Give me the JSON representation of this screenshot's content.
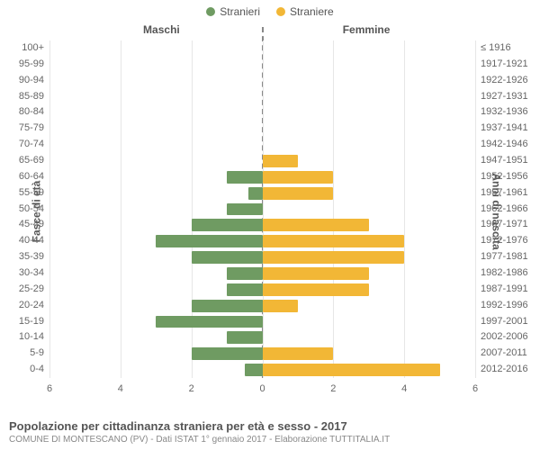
{
  "legend": {
    "male": {
      "label": "Stranieri",
      "color": "#6f9b62"
    },
    "female": {
      "label": "Straniere",
      "color": "#f2b736"
    }
  },
  "chart": {
    "type": "bar",
    "left_title": "Maschi",
    "right_title": "Femmine",
    "yaxis_left_label": "Fasce di età",
    "yaxis_right_label": "Anni di nascita",
    "xmax": 6,
    "xticks": [
      0,
      2,
      4,
      6
    ],
    "grid_color": "#e6e6e6",
    "background_color": "#ffffff",
    "center_line_color": "#888888",
    "male_color": "#6f9b62",
    "female_color": "#f2b736",
    "label_fontsize": 11,
    "title_fontsize": 12,
    "rows": [
      {
        "age": "100+",
        "year": "≤ 1916",
        "m": 0,
        "f": 0
      },
      {
        "age": "95-99",
        "year": "1917-1921",
        "m": 0,
        "f": 0
      },
      {
        "age": "90-94",
        "year": "1922-1926",
        "m": 0,
        "f": 0
      },
      {
        "age": "85-89",
        "year": "1927-1931",
        "m": 0,
        "f": 0
      },
      {
        "age": "80-84",
        "year": "1932-1936",
        "m": 0,
        "f": 0
      },
      {
        "age": "75-79",
        "year": "1937-1941",
        "m": 0,
        "f": 0
      },
      {
        "age": "70-74",
        "year": "1942-1946",
        "m": 0,
        "f": 0
      },
      {
        "age": "65-69",
        "year": "1947-1951",
        "m": 0,
        "f": 1
      },
      {
        "age": "60-64",
        "year": "1952-1956",
        "m": 1,
        "f": 2
      },
      {
        "age": "55-59",
        "year": "1957-1961",
        "m": 0.4,
        "f": 2
      },
      {
        "age": "50-54",
        "year": "1962-1966",
        "m": 1,
        "f": 0
      },
      {
        "age": "45-49",
        "year": "1967-1971",
        "m": 2,
        "f": 3
      },
      {
        "age": "40-44",
        "year": "1972-1976",
        "m": 3,
        "f": 4
      },
      {
        "age": "35-39",
        "year": "1977-1981",
        "m": 2,
        "f": 4
      },
      {
        "age": "30-34",
        "year": "1982-1986",
        "m": 1,
        "f": 3
      },
      {
        "age": "25-29",
        "year": "1987-1991",
        "m": 1,
        "f": 3
      },
      {
        "age": "20-24",
        "year": "1992-1996",
        "m": 2,
        "f": 1
      },
      {
        "age": "15-19",
        "year": "1997-2001",
        "m": 3,
        "f": 0
      },
      {
        "age": "10-14",
        "year": "2002-2006",
        "m": 1,
        "f": 0
      },
      {
        "age": "5-9",
        "year": "2007-2011",
        "m": 2,
        "f": 2
      },
      {
        "age": "0-4",
        "year": "2012-2016",
        "m": 0.5,
        "f": 5
      }
    ]
  },
  "footer": {
    "title": "Popolazione per cittadinanza straniera per età e sesso - 2017",
    "subtitle": "COMUNE DI MONTESCANO (PV) - Dati ISTAT 1° gennaio 2017 - Elaborazione TUTTITALIA.IT"
  }
}
